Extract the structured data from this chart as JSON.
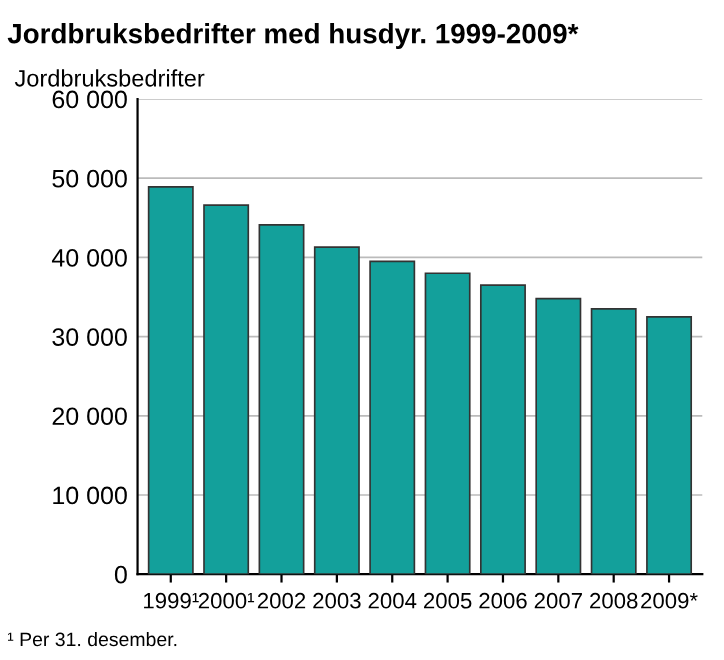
{
  "chart_data": {
    "type": "bar",
    "title": "Jordbruksbedrifter med husdyr. 1999-2009*",
    "ylabel": "Jordbruksbedrifter",
    "categories": [
      "1999¹",
      "2000¹",
      "2002",
      "2003",
      "2004",
      "2005",
      "2006",
      "2007",
      "2008",
      "2009*"
    ],
    "values": [
      48900,
      46600,
      44100,
      41300,
      39500,
      38000,
      36500,
      34800,
      33500,
      32500
    ],
    "color": "#13a09b",
    "ylim": [
      0,
      60000
    ],
    "yticks": [
      {
        "value": 0,
        "label": "0"
      },
      {
        "value": 10000,
        "label": "10 000"
      },
      {
        "value": 20000,
        "label": "20 000"
      },
      {
        "value": 30000,
        "label": "30 000"
      },
      {
        "value": 40000,
        "label": "40 000"
      },
      {
        "value": 50000,
        "label": "50 000"
      },
      {
        "value": 60000,
        "label": "60 000"
      }
    ],
    "grid": "y",
    "annotations": [
      "¹ Per 31. desember."
    ]
  }
}
